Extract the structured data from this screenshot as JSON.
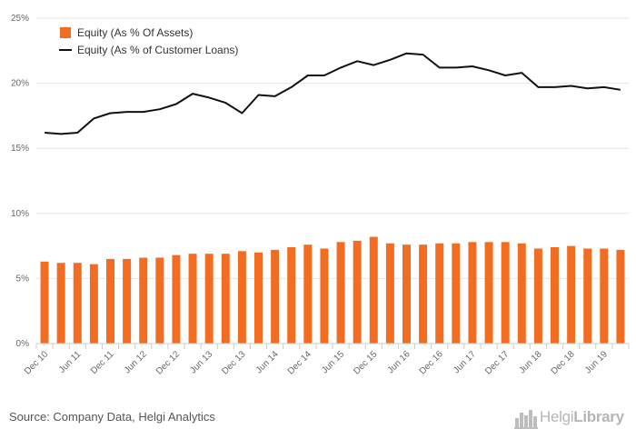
{
  "chart_data": {
    "type": "bar+line",
    "categories": [
      "Dec 10",
      "Mar 11",
      "Jun 11",
      "Sep 11",
      "Dec 11",
      "Mar 12",
      "Jun 12",
      "Sep 12",
      "Dec 12",
      "Mar 13",
      "Jun 13",
      "Sep 13",
      "Dec 13",
      "Mar 14",
      "Jun 14",
      "Sep 14",
      "Dec 14",
      "Mar 15",
      "Jun 15",
      "Sep 15",
      "Dec 15",
      "Mar 16",
      "Jun 16",
      "Sep 16",
      "Dec 16",
      "Mar 17",
      "Jun 17",
      "Sep 17",
      "Dec 17",
      "Mar 18",
      "Jun 18",
      "Sep 18",
      "Dec 18",
      "Mar 19",
      "Jun 19",
      "Sep 19"
    ],
    "tick_labels": [
      "Dec 10",
      "Jun 11",
      "Dec 11",
      "Jun 12",
      "Dec 12",
      "Jun 13",
      "Dec 13",
      "Jun 14",
      "Dec 14",
      "Jun 15",
      "Dec 15",
      "Jun 16",
      "Dec 16",
      "Jun 17",
      "Dec 17",
      "Jun 18",
      "Dec 18",
      "Jun 19"
    ],
    "series": [
      {
        "name": "Equity (As % Of Assets)",
        "type": "bar",
        "color": "#f26d21",
        "values": [
          6.3,
          6.2,
          6.2,
          6.1,
          6.5,
          6.5,
          6.6,
          6.6,
          6.8,
          6.9,
          6.9,
          6.9,
          7.1,
          7.0,
          7.2,
          7.4,
          7.6,
          7.3,
          7.8,
          7.9,
          8.2,
          7.7,
          7.6,
          7.6,
          7.7,
          7.7,
          7.8,
          7.8,
          7.8,
          7.7,
          7.3,
          7.4,
          7.5,
          7.3,
          7.3,
          7.2
        ]
      },
      {
        "name": "Equity (As % of Customer Loans)",
        "type": "line",
        "color": "#111111",
        "values": [
          16.2,
          16.1,
          16.2,
          17.3,
          17.7,
          17.8,
          17.8,
          18.0,
          18.4,
          19.2,
          18.9,
          18.5,
          17.7,
          19.1,
          19.0,
          19.7,
          20.6,
          20.6,
          21.2,
          21.7,
          21.4,
          21.8,
          22.3,
          22.2,
          21.2,
          21.2,
          21.3,
          21.0,
          20.6,
          20.8,
          19.7,
          19.7,
          19.8,
          19.6,
          19.7,
          19.5
        ]
      }
    ],
    "ylim": [
      0,
      25
    ],
    "y_ticks": [
      "0%",
      "5%",
      "10%",
      "15%",
      "20%",
      "25%"
    ],
    "legend_position": "top-left",
    "grid": true
  },
  "footer": {
    "source": "Source: Company Data, Helgi Analytics",
    "brand_light": "Helgi",
    "brand_bold": "Library",
    "brand_icon": "city-skyline-icon"
  }
}
